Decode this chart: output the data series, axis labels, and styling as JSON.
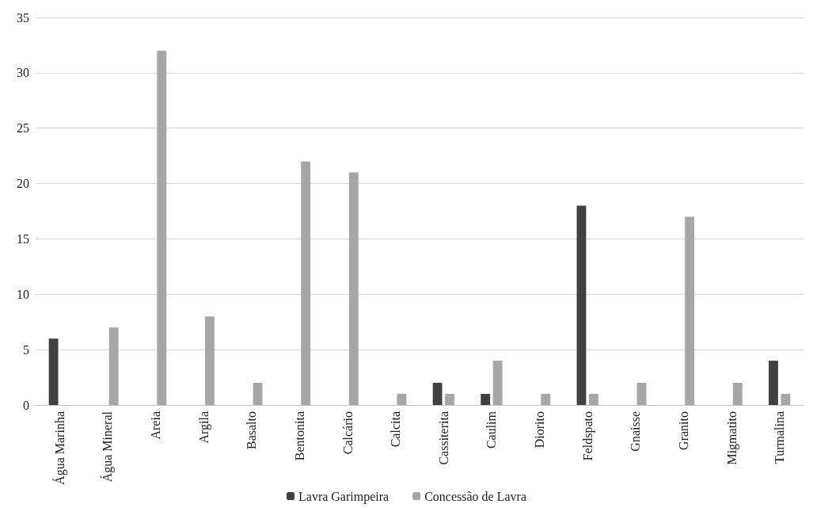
{
  "chart_data": {
    "type": "bar",
    "categories": [
      "Água Marinha",
      "Água Mineral",
      "Areia",
      "Argila",
      "Basalto",
      "Bentonita",
      "Calcário",
      "Calcita",
      "Cassiterita",
      "Caulim",
      "Diorito",
      "Feldspato",
      "Gnaisse",
      "Granito",
      "Migmatito",
      "Turmalina"
    ],
    "series": [
      {
        "name": "Lavra Garimpeira",
        "color": "#404040",
        "values": [
          6,
          0,
          0,
          0,
          0,
          0,
          0,
          0,
          2,
          1,
          0,
          18,
          0,
          0,
          0,
          4
        ]
      },
      {
        "name": "Concessão de Lavra",
        "color": "#a6a6a6",
        "values": [
          0,
          7,
          32,
          8,
          2,
          22,
          21,
          1,
          1,
          4,
          1,
          1,
          2,
          17,
          2,
          1
        ]
      }
    ],
    "ylim": [
      0,
      35
    ],
    "yticks": [
      0,
      5,
      10,
      15,
      20,
      25,
      30,
      35
    ],
    "grid": "y",
    "legend": "bottom"
  }
}
